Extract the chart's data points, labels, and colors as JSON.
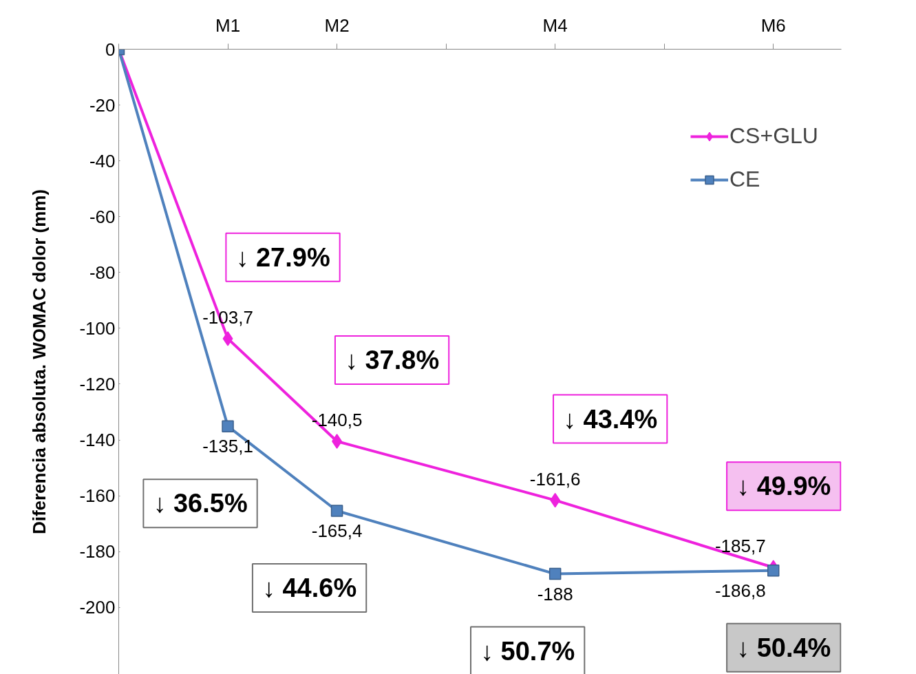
{
  "chart_data": {
    "type": "line",
    "categories": [
      null,
      "M1",
      "M2",
      null,
      "M4",
      null,
      "M6"
    ],
    "ylabel": "Diferencia absoluta. WOMAC dolor (mm)",
    "ylim": [
      -224,
      0
    ],
    "yticks": [
      0,
      -20,
      -40,
      -60,
      -80,
      -100,
      -120,
      -140,
      -160,
      -180,
      -200
    ],
    "series": [
      {
        "name": "CS+GLU",
        "color": "#ee22dd",
        "marker": "diamond",
        "values": [
          0,
          -103.7,
          -140.5,
          null,
          -161.6,
          null,
          -185.7
        ],
        "value_labels": [
          null,
          "-103,7",
          "-140,5",
          null,
          "-161,6",
          null,
          "-185,7"
        ]
      },
      {
        "name": "CE",
        "color": "#4f81bd",
        "marker": "square",
        "values": [
          0,
          -135.1,
          -165.4,
          null,
          -188,
          null,
          -186.8
        ],
        "value_labels": [
          null,
          "-135,1",
          "-165,4",
          null,
          "-188",
          null,
          "-186,8"
        ]
      }
    ],
    "annotations": [
      "↓ 27.9%",
      "↓ 37.8%",
      "↓ 43.4%",
      "↓ 49.9%",
      "↓ 36.5%",
      "↓ 44.6%",
      "↓ 50.7%",
      "↓ 50.4%"
    ],
    "legend": "top right",
    "grid": false,
    "line_style": "solid"
  }
}
